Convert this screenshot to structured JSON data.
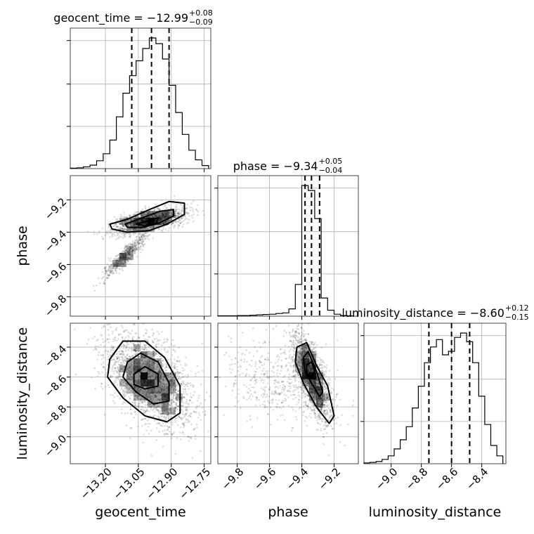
{
  "chart_data": {
    "type": "corner",
    "parameters": [
      {
        "key": "geocent_time",
        "label": "geocent_time",
        "range": [
          -13.36,
          -12.72
        ],
        "ticks": [
          -13.2,
          -13.05,
          -12.9,
          -12.75
        ],
        "tick_labels": [
          "−13.20",
          "−13.05",
          "−12.90",
          "−12.75"
        ]
      },
      {
        "key": "phase",
        "label": "phase",
        "range": [
          -9.92,
          -9.05
        ],
        "ticks": [
          -9.8,
          -9.6,
          -9.4,
          -9.2
        ],
        "tick_labels": [
          "−9.8",
          "−9.6",
          "−9.4",
          "−9.2"
        ]
      },
      {
        "key": "luminosity_distance",
        "label": "luminosity_distance",
        "range": [
          -9.18,
          -8.24
        ],
        "ticks": [
          -9.0,
          -8.8,
          -8.6,
          -8.4
        ],
        "tick_labels": [
          "−9.0",
          "−8.8",
          "−8.6",
          "−8.4"
        ]
      }
    ],
    "titles": [
      {
        "param": "geocent_time",
        "text": "geocent_time = −12.99",
        "plus": "+0.08",
        "minus": "−0.09"
      },
      {
        "param": "phase",
        "text": "phase = −9.34",
        "plus": "+0.05",
        "minus": "−0.04"
      },
      {
        "param": "luminosity_distance",
        "text": "luminosity_distance = −8.60",
        "plus": "+0.12",
        "minus": "−0.15"
      }
    ],
    "histograms": [
      {
        "param": "geocent_time",
        "quantiles": [
          -13.08,
          -12.99,
          -12.91
        ],
        "bin_edges": [
          -13.36,
          -13.33,
          -13.3,
          -13.27,
          -13.24,
          -13.21,
          -13.18,
          -13.15,
          -13.12,
          -13.09,
          -13.06,
          -13.03,
          -13.0,
          -12.97,
          -12.94,
          -12.91,
          -12.88,
          -12.85,
          -12.82,
          -12.79,
          -12.76,
          -12.73
        ],
        "counts": [
          1,
          2,
          4,
          8,
          18,
          34,
          65,
          118,
          172,
          212,
          246,
          274,
          298,
          285,
          250,
          190,
          128,
          78,
          42,
          20,
          7
        ]
      },
      {
        "param": "phase",
        "quantiles": [
          -9.38,
          -9.34,
          -9.29
        ],
        "bin_edges": [
          -9.92,
          -9.88,
          -9.84,
          -9.8,
          -9.76,
          -9.72,
          -9.68,
          -9.64,
          -9.6,
          -9.56,
          -9.52,
          -9.48,
          -9.44,
          -9.4,
          -9.36,
          -9.32,
          -9.28,
          -9.24,
          -9.2,
          -9.16,
          -9.12,
          -9.08
        ],
        "counts": [
          1,
          1,
          1,
          2,
          2,
          3,
          4,
          5,
          6,
          8,
          10,
          22,
          96,
          395,
          380,
          295,
          55,
          18,
          6,
          2,
          1
        ]
      },
      {
        "param": "luminosity_distance",
        "quantiles": [
          -8.75,
          -8.6,
          -8.48
        ],
        "bin_edges": [
          -9.18,
          -9.14,
          -9.1,
          -9.06,
          -9.02,
          -8.98,
          -8.94,
          -8.9,
          -8.86,
          -8.82,
          -8.78,
          -8.74,
          -8.7,
          -8.66,
          -8.62,
          -8.58,
          -8.54,
          -8.5,
          -8.46,
          -8.42,
          -8.38,
          -8.34,
          -8.3,
          -8.26
        ],
        "counts": [
          2,
          3,
          5,
          10,
          18,
          34,
          55,
          85,
          128,
          178,
          232,
          268,
          285,
          250,
          258,
          290,
          300,
          280,
          232,
          155,
          90,
          42,
          18
        ]
      }
    ],
    "scatter_panels": [
      {
        "x": "geocent_time",
        "y": "phase",
        "n_points": 1900,
        "groups": [
          {
            "weight": 0.72,
            "center": [
              -13.0,
              -9.33
            ],
            "spread": [
              0.085,
              0.04
            ],
            "corr": 0.55
          },
          {
            "weight": 0.28,
            "center": [
              -13.11,
              -9.55
            ],
            "spread": [
              0.05,
              0.07
            ],
            "corr": 0.92
          }
        ],
        "density_peak": [
          -13.02,
          -9.35
        ],
        "contours": [
          [
            -13.18,
            -9.35,
            -13.1,
            -9.32,
            -13.0,
            -9.26,
            -12.91,
            -9.21,
            -12.84,
            -9.22,
            -12.84,
            -9.29,
            -12.92,
            -9.35,
            -13.0,
            -9.39,
            -13.1,
            -9.4,
            -13.17,
            -9.38
          ],
          [
            -13.11,
            -9.35,
            -13.03,
            -9.31,
            -12.95,
            -9.27,
            -12.89,
            -9.26,
            -12.89,
            -9.3,
            -12.95,
            -9.34,
            -13.03,
            -9.37,
            -13.1,
            -9.37
          ],
          [
            -13.06,
            -9.35,
            -13.0,
            -9.33,
            -12.96,
            -9.31,
            -12.97,
            -9.35,
            -13.02,
            -9.36
          ]
        ]
      },
      {
        "x": "geocent_time",
        "y": "luminosity_distance",
        "n_points": 2200,
        "groups": [
          {
            "weight": 1.0,
            "center": [
              -13.0,
              -8.62
            ],
            "spread": [
              0.1,
              0.16
            ],
            "corr": -0.5
          }
        ],
        "density_peak": [
          -13.03,
          -8.6
        ],
        "contours": [
          [
            -13.18,
            -8.48,
            -13.12,
            -8.36,
            -13.02,
            -8.36,
            -12.93,
            -8.47,
            -12.86,
            -8.66,
            -12.86,
            -8.84,
            -12.92,
            -8.9,
            -13.02,
            -8.86,
            -13.12,
            -8.74,
            -13.19,
            -8.6
          ],
          [
            -13.1,
            -8.5,
            -13.04,
            -8.44,
            -12.96,
            -8.5,
            -12.91,
            -8.64,
            -12.91,
            -8.76,
            -12.98,
            -8.78,
            -13.06,
            -8.7,
            -13.12,
            -8.6
          ],
          [
            -13.07,
            -8.58,
            -13.02,
            -8.53,
            -12.96,
            -8.58,
            -12.96,
            -8.66,
            -13.02,
            -8.68,
            -13.07,
            -8.65
          ]
        ]
      },
      {
        "x": "phase",
        "y": "luminosity_distance",
        "n_points": 2000,
        "groups": [
          {
            "weight": 0.75,
            "center": [
              -9.34,
              -8.6
            ],
            "spread": [
              0.06,
              0.15
            ],
            "corr": -0.7
          },
          {
            "weight": 0.25,
            "center": [
              -9.55,
              -8.62
            ],
            "spread": [
              0.16,
              0.14
            ],
            "corr": -0.2
          }
        ],
        "density_peak": [
          -9.36,
          -8.56
        ],
        "contours": [
          [
            -9.43,
            -8.4,
            -9.37,
            -8.37,
            -9.31,
            -8.52,
            -9.24,
            -8.66,
            -9.2,
            -8.86,
            -9.23,
            -8.91,
            -9.31,
            -8.8,
            -9.39,
            -8.64,
            -9.44,
            -8.5
          ],
          [
            -9.39,
            -8.47,
            -9.36,
            -8.43,
            -9.31,
            -8.56,
            -9.27,
            -8.7,
            -9.29,
            -8.73,
            -9.34,
            -8.64,
            -9.38,
            -8.56
          ],
          [
            -9.37,
            -8.52,
            -9.34,
            -8.5,
            -9.32,
            -8.56,
            -9.34,
            -8.6,
            -9.37,
            -8.58
          ]
        ]
      }
    ]
  }
}
